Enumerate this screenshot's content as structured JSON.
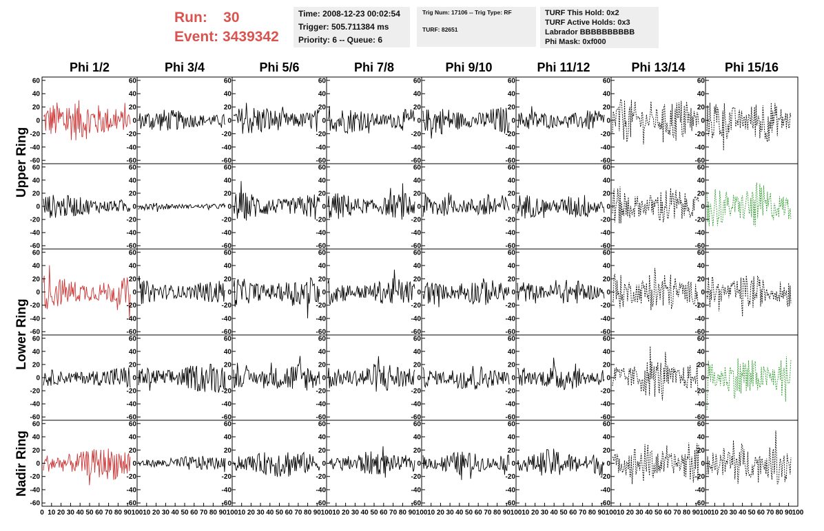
{
  "header": {
    "run_label": "Run:",
    "run_value": "30",
    "event_label": "Event:",
    "event_value": "3439342",
    "time": "Time: 2008-12-23 00:02:54",
    "trigger": "Trigger: 505.711384 ms",
    "priority": "Priority: 6 -- Queue: 6",
    "trig_num": "Trig Num: 17106 -- Trig Type: RF",
    "turf": "TURF: 82651",
    "turf_hold": "TURF This Hold: 0x2",
    "turf_active": "TURF Active Holds: 0x3",
    "labrador": "Labrador BBBBBBBBBB",
    "phi_mask": "Phi Mask: 0xf000"
  },
  "colors": {
    "red": "#cc3333",
    "green": "#2e9a2e",
    "black": "#000000",
    "header_red": "#d9534f",
    "box_bg": "#eeeeee"
  },
  "chart_data": {
    "type": "line",
    "columns": [
      "Phi 1/2",
      "Phi 3/4",
      "Phi 5/6",
      "Phi 7/8",
      "Phi 9/10",
      "Phi 11/12",
      "Phi 13/14",
      "Phi 15/16"
    ],
    "ring_labels": [
      "Upper Ring",
      "Lower Ring",
      "Nadir Ring"
    ],
    "rows": 5,
    "ylim": [
      -65,
      65
    ],
    "xlim": [
      0,
      100
    ],
    "y_ticks": [
      -60,
      -40,
      -20,
      0,
      20,
      40,
      60
    ],
    "x_ticks": [
      "0",
      "10",
      "20",
      "30",
      "40",
      "50",
      "60",
      "70",
      "80",
      "90",
      "100"
    ],
    "panels": [
      [
        {
          "color": "red",
          "style": "solid",
          "amp": 22
        },
        {
          "color": "black",
          "style": "solid",
          "amp": 12
        },
        {
          "color": "black",
          "style": "solid",
          "amp": 16
        },
        {
          "color": "black",
          "style": "solid",
          "amp": 14
        },
        {
          "color": "black",
          "style": "solid",
          "amp": 15
        },
        {
          "color": "black",
          "style": "solid",
          "amp": 11
        },
        {
          "color": "black",
          "style": "dashed",
          "amp": 24
        },
        {
          "color": "black",
          "style": "dashed",
          "amp": 24
        }
      ],
      [
        {
          "color": "black",
          "style": "solid",
          "amp": 13
        },
        {
          "color": "black",
          "style": "solid",
          "amp": 4
        },
        {
          "color": "black",
          "style": "solid",
          "amp": 16
        },
        {
          "color": "black",
          "style": "solid",
          "amp": 15
        },
        {
          "color": "black",
          "style": "solid",
          "amp": 14
        },
        {
          "color": "black",
          "style": "solid",
          "amp": 14
        },
        {
          "color": "black",
          "style": "dashed",
          "amp": 22
        },
        {
          "color": "green",
          "style": "dashed",
          "amp": 26
        }
      ],
      [
        {
          "color": "red",
          "style": "solid",
          "amp": 20
        },
        {
          "color": "black",
          "style": "solid",
          "amp": 14
        },
        {
          "color": "black",
          "style": "solid",
          "amp": 17
        },
        {
          "color": "black",
          "style": "solid",
          "amp": 15
        },
        {
          "color": "black",
          "style": "solid",
          "amp": 15
        },
        {
          "color": "black",
          "style": "solid",
          "amp": 14
        },
        {
          "color": "black",
          "style": "dashed",
          "amp": 24
        },
        {
          "color": "black",
          "style": "dashed",
          "amp": 20
        }
      ],
      [
        {
          "color": "black",
          "style": "solid",
          "amp": 13
        },
        {
          "color": "black",
          "style": "solid",
          "amp": 17
        },
        {
          "color": "black",
          "style": "solid",
          "amp": 16
        },
        {
          "color": "black",
          "style": "solid",
          "amp": 17
        },
        {
          "color": "black",
          "style": "solid",
          "amp": 15
        },
        {
          "color": "black",
          "style": "solid",
          "amp": 15
        },
        {
          "color": "black",
          "style": "dashed",
          "amp": 22
        },
        {
          "color": "green",
          "style": "dashed",
          "amp": 26
        }
      ],
      [
        {
          "color": "red",
          "style": "solid",
          "amp": 18
        },
        {
          "color": "black",
          "style": "solid",
          "amp": 8
        },
        {
          "color": "black",
          "style": "solid",
          "amp": 16
        },
        {
          "color": "black",
          "style": "solid",
          "amp": 13
        },
        {
          "color": "black",
          "style": "solid",
          "amp": 13
        },
        {
          "color": "black",
          "style": "solid",
          "amp": 16
        },
        {
          "color": "black",
          "style": "dashed",
          "amp": 22
        },
        {
          "color": "black",
          "style": "dashed",
          "amp": 24
        }
      ]
    ]
  }
}
